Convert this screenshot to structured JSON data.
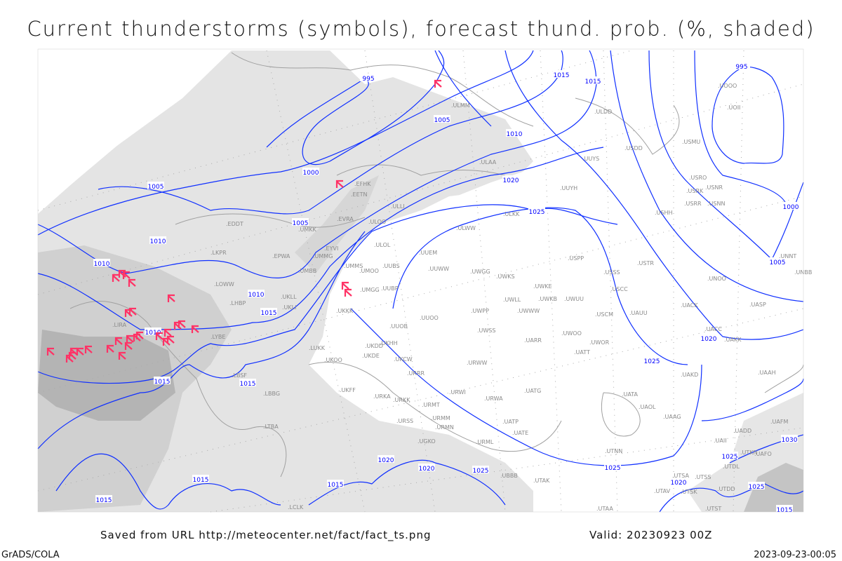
{
  "title": "Current thunderstorms (symbols), forecast thund. prob. (%, shaded)",
  "footer": {
    "source": "Saved from URL http://meteocenter.net/fact/fact_ts.png",
    "valid": "Valid: 20230923 00Z",
    "software": "GrADS/COLA",
    "timestamp": "2023-09-23-00:05"
  },
  "colors": {
    "isobars": "#1030ff",
    "thunderstorm_symbol": "#ff3366",
    "coastlines": "#a0a0a0",
    "shading_light": "#e4e4e4",
    "shading_mid": "#cdcdcd",
    "shading_dark": "#b0b0b0"
  },
  "legend_symbol": "thunderstorm-symbol",
  "isobar_labels": [
    "995",
    "995",
    "1015",
    "1015",
    "1005",
    "1010",
    "1000",
    "1005",
    "1020",
    "1025",
    "1000",
    "1005",
    "1010",
    "1010",
    "1005",
    "1010",
    "1015",
    "1010",
    "1020",
    "1025",
    "1015",
    "1015",
    "1030",
    "1025",
    "1025",
    "1020",
    "1020",
    "1025",
    "1015",
    "1015",
    "1020",
    "1025",
    "1015",
    "1015"
  ],
  "stations": [
    "UMKK",
    "EDDT",
    "LKPR",
    "EPWA",
    "UMMG",
    "EYVI",
    "UMBB",
    "LOWW",
    "UKLL",
    "UKLI",
    "LHBP",
    "LIRA",
    "LYBE",
    "LUKK",
    "UKOO",
    "LBSF",
    "LBBG",
    "LTBA",
    "LCLK",
    "EFHK",
    "EETN",
    "EVRA",
    "ULLI",
    "ULOO",
    "ULMM",
    "ULAA",
    "ULKK",
    "ULWW",
    "UUYS",
    "UUYH",
    "ULOL",
    "UUEM",
    "UMMS",
    "UMOO",
    "UUBS",
    "UUWW",
    "UWGG",
    "UWKS",
    "UMGG",
    "UUBP",
    "UKKK",
    "UUOO",
    "UUOB",
    "UKHH",
    "UKDD",
    "UKDE",
    "UKCW",
    "UKFF",
    "URKA",
    "URKK",
    "URRR",
    "URWI",
    "URWA",
    "UATG",
    "URMT",
    "URMM",
    "URSS",
    "URMN",
    "URML",
    "UGKO",
    "UATE",
    "UATP",
    "UWPP",
    "UWSS",
    "URWW",
    "UARR",
    "UWOO",
    "UWOR",
    "UATT",
    "UWKE",
    "UWLL",
    "UWKB",
    "UWUU",
    "UWWW",
    "USPP",
    "USSS",
    "USCC",
    "USCM",
    "UAUU",
    "USTR",
    "UNOO",
    "UACK",
    "UASP",
    "UACC",
    "UAKK",
    "UAKD",
    "UATA",
    "UAOL",
    "UAAG",
    "UTNN",
    "UAAH",
    "UAFM",
    "UADD",
    "UAII",
    "UTKN",
    "UAFO",
    "UTDL",
    "UTSA",
    "UTSS",
    "UTDD",
    "UTAV",
    "UTSK",
    "UTST",
    "UTAA",
    "UTAK",
    "UBBB",
    "UOOO",
    "UOII",
    "ULDD",
    "USDD",
    "USMU",
    "USRO",
    "USRK",
    "USNR",
    "USRR",
    "USNN",
    "USHH",
    "UNNT",
    "UNBB"
  ]
}
